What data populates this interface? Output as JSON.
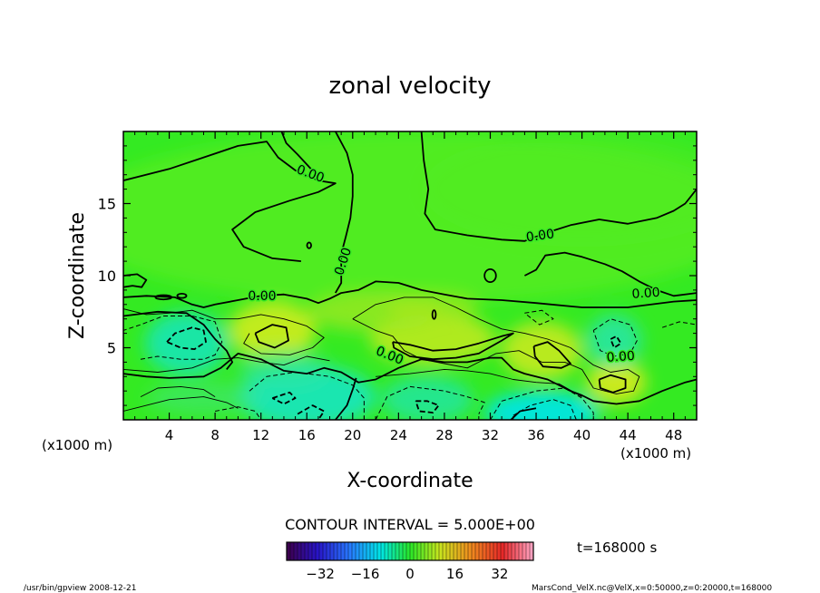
{
  "chart_data": {
    "type": "heatmap",
    "title": "zonal velocity",
    "xlabel": "X-coordinate",
    "ylabel": "Z-coordinate",
    "x_unit": "(x1000 m)",
    "y_unit": "(x1000 m)",
    "xlim": [
      0,
      50
    ],
    "ylim": [
      0,
      20
    ],
    "x_ticks": [
      4,
      8,
      12,
      16,
      20,
      24,
      28,
      32,
      36,
      40,
      44,
      48
    ],
    "y_ticks": [
      5,
      10,
      15
    ],
    "contour_labels": [
      {
        "text": "0.00",
        "x": 16.2,
        "y": 16.8,
        "angle": 20
      },
      {
        "text": "0.00",
        "x": 19.5,
        "y": 10.9,
        "angle": -72
      },
      {
        "text": "0.00",
        "x": 12.1,
        "y": 8.3,
        "angle": 0
      },
      {
        "text": "0.00",
        "x": 23.1,
        "y": 4.2,
        "angle": 22
      },
      {
        "text": "0.00",
        "x": 36.4,
        "y": 12.5,
        "angle": -8
      },
      {
        "text": "0.00",
        "x": 45.6,
        "y": 8.5,
        "angle": -4
      },
      {
        "text": "0.00",
        "x": 43.4,
        "y": 4.1,
        "angle": -4
      }
    ],
    "contour_interval_text": "CONTOUR INTERVAL = 5.000E+00",
    "colorbar": {
      "ticks": [
        -32,
        -16,
        0,
        16,
        32
      ],
      "range": [
        -44,
        44
      ]
    },
    "time_label": "t=168000 s",
    "grid": false
  },
  "footer": {
    "left": "/usr/bin/gpview   2008-12-21",
    "right": "MarsCond_VelX.nc@VelX,x=0:50000,z=0:20000,t=168000"
  },
  "colors": {
    "green": "#22e61e",
    "cyan": "#00e6d6",
    "yellow": "#e6e61e",
    "contour": "#000000"
  }
}
